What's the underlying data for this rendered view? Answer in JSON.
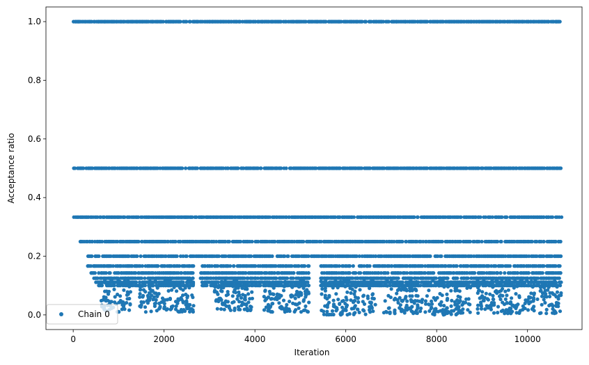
{
  "chart_data": {
    "type": "scatter",
    "xlabel": "Iteration",
    "ylabel": "Acceptance ratio",
    "xlim": [
      -600,
      11200
    ],
    "ylim": [
      -0.05,
      1.05
    ],
    "xticks": [
      0,
      2000,
      4000,
      6000,
      8000,
      10000
    ],
    "xtick_labels": [
      "0",
      "2000",
      "4000",
      "6000",
      "8000",
      "10000"
    ],
    "yticks": [
      0.0,
      0.2,
      0.4,
      0.6,
      0.8,
      1.0
    ],
    "ytick_labels": [
      "0.0",
      "0.2",
      "0.4",
      "0.6",
      "0.8",
      "1.0"
    ],
    "grid": false,
    "legend": {
      "placement": "lower-left",
      "entries": [
        "Chain 0"
      ]
    },
    "series": [
      {
        "name": "Chain 0",
        "color": "#1f77b4",
        "marker": "circle",
        "iteration_range": [
          0,
          10750
        ],
        "discrete_levels": [
          {
            "value": 1.0,
            "x_range": [
              0,
              10750
            ]
          },
          {
            "value": 0.5,
            "x_range": [
              0,
              10750
            ]
          },
          {
            "value": 0.3333,
            "x_range": [
              0,
              10750
            ]
          },
          {
            "value": 0.25,
            "x_range": [
              130,
              10750
            ]
          },
          {
            "value": 0.2,
            "x_range": [
              250,
              10750
            ]
          },
          {
            "value": 0.1667,
            "x_range": [
              300,
              10750
            ]
          },
          {
            "value": 0.1429,
            "x_range": [
              380,
              10750
            ]
          },
          {
            "value": 0.125,
            "x_range": [
              450,
              10750
            ]
          },
          {
            "value": 0.1111,
            "x_range": [
              500,
              10750
            ]
          },
          {
            "value": 0.1,
            "x_range": [
              520,
              10750
            ]
          }
        ],
        "low_value_clusters": [
          {
            "x_range": [
              600,
              1270
            ],
            "y_range": [
              0.01,
              0.12
            ]
          },
          {
            "x_range": [
              1450,
              2650
            ],
            "y_range": [
              0.01,
              0.12
            ]
          },
          {
            "x_range": [
              3100,
              3950
            ],
            "y_range": [
              0.015,
              0.12
            ]
          },
          {
            "x_range": [
              4200,
              5200
            ],
            "y_range": [
              0.01,
              0.12
            ]
          },
          {
            "x_range": [
              5450,
              6700
            ],
            "y_range": [
              0.0,
              0.12
            ]
          },
          {
            "x_range": [
              6800,
              7700
            ],
            "y_range": [
              0.005,
              0.12
            ]
          },
          {
            "x_range": [
              7750,
              8750
            ],
            "y_range": [
              0.0,
              0.12
            ]
          },
          {
            "x_range": [
              8900,
              10750
            ],
            "y_range": [
              0.005,
              0.12
            ]
          }
        ],
        "gaps": [
          {
            "x_range": [
              2650,
              2800
            ],
            "y_below": 0.2
          },
          {
            "x_range": [
              5200,
              5450
            ],
            "y_below": 0.2
          }
        ]
      }
    ]
  }
}
